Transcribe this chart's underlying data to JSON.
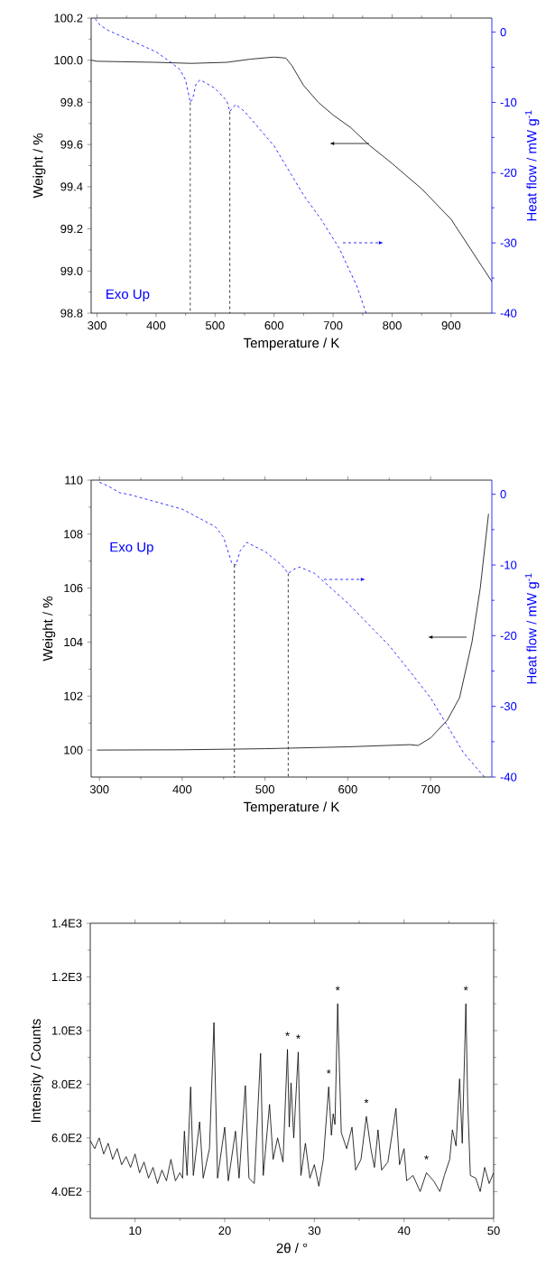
{
  "chart_data": [
    {
      "type": "line",
      "xlabel": "Temperature / K",
      "ylabel": "Weight / %",
      "y2label": "Heat flow / mW g$^{-1}$",
      "xlim": [
        290,
        969
      ],
      "xticks": [
        300,
        400,
        500,
        600,
        700,
        800,
        900
      ],
      "ylim": [
        98.8,
        100.2
      ],
      "yticks": [
        98.8,
        {
          "value": 99,
          "label": "99.0"
        },
        99.2,
        99.4,
        99.6,
        99.8,
        {
          "value": 100,
          "label": "100.0"
        },
        100.2
      ],
      "y2lim": [
        -40,
        2
      ],
      "y2ticks": [
        -40,
        -30,
        -20,
        -10,
        0
      ],
      "annotations": [
        "Exo Up"
      ],
      "series": [
        {
          "color": "#000000",
          "x": [
            290,
            300,
            400,
            460,
            520,
            560,
            600,
            620,
            630,
            650,
            675,
            700,
            730,
            760,
            800,
            850,
            900,
            969
          ],
          "values": [
            100.0,
            99.995,
            99.99,
            99.985,
            99.99,
            100.005,
            100.015,
            100.01,
            99.975,
            99.88,
            99.8,
            99.74,
            99.68,
            99.6,
            99.51,
            99.39,
            99.245,
            98.95
          ]
        },
        {
          "color": "#0000ff",
          "axis": "y2",
          "line_style": "dashed",
          "x": [
            297,
            305,
            320,
            400,
            425,
            440,
            450,
            458,
            462,
            468,
            475,
            500,
            520,
            525,
            535,
            550,
            600,
            650,
            680,
            710,
            740,
            756
          ],
          "values": [
            1.9,
            1.0,
            0.2,
            -2.8,
            -4.3,
            -5.3,
            -6.8,
            -10.0,
            -9.5,
            -7.3,
            -6.8,
            -8.0,
            -9.8,
            -11.3,
            -10.3,
            -11.3,
            -16.2,
            -23.2,
            -26.7,
            -30.7,
            -36.1,
            -40
          ]
        },
        {
          "color": "#000000",
          "axis": "y2",
          "line_style": "dashed",
          "x": [
            458,
            458
          ],
          "values": [
            -10.0,
            -40
          ]
        },
        {
          "color": "#000000",
          "axis": "y2",
          "line_style": "dashed",
          "x": [
            525,
            525
          ],
          "values": [
            -11.3,
            -40
          ]
        }
      ]
    },
    {
      "type": "line",
      "xlabel": "Temperature / K",
      "ylabel": "Weight / %",
      "y2label": "Heat flow / mW g$^{-1}$",
      "xlim": [
        290,
        774
      ],
      "xticks": [
        300,
        400,
        500,
        600,
        700
      ],
      "ylim": [
        99,
        110
      ],
      "yticks": [
        100,
        102,
        104,
        106,
        108,
        110
      ],
      "y2lim": [
        -40,
        2
      ],
      "y2ticks": [
        -40,
        -30,
        -20,
        -10,
        0
      ],
      "annotations": [
        "Exo Up"
      ],
      "series": [
        {
          "color": "#000000",
          "x": [
            297,
            400,
            500,
            600,
            675,
            685,
            700,
            720,
            735,
            750,
            760,
            770
          ],
          "values": [
            100.0,
            100.01,
            100.05,
            100.12,
            100.2,
            100.17,
            100.45,
            101.1,
            101.94,
            104.0,
            106.0,
            108.75
          ]
        },
        {
          "color": "#0000ff",
          "axis": "y2",
          "line_style": "dashed",
          "x": [
            300,
            310,
            325,
            335,
            400,
            440,
            450,
            460,
            465,
            470,
            478,
            500,
            520,
            528,
            535,
            542,
            560,
            600,
            650,
            680,
            700,
            720,
            740,
            765
          ],
          "values": [
            1.7,
            1.2,
            0.2,
            0.0,
            -2.1,
            -4.6,
            -6.1,
            -9.8,
            -10.0,
            -8.0,
            -6.8,
            -8.1,
            -10.0,
            -11.2,
            -10.6,
            -10.3,
            -11.2,
            -15.4,
            -21.4,
            -25.8,
            -28.8,
            -32.7,
            -36.6,
            -40
          ]
        },
        {
          "color": "#000000",
          "axis": "y2",
          "line_style": "dashed",
          "x": [
            463,
            463
          ],
          "values": [
            -10.0,
            -40
          ]
        },
        {
          "color": "#000000",
          "axis": "y2",
          "line_style": "dashed",
          "x": [
            528,
            528
          ],
          "values": [
            -11.2,
            -40
          ]
        }
      ]
    },
    {
      "type": "line",
      "xlabel": "2θ / °",
      "ylabel": "Intensity / Counts",
      "xlim": [
        5,
        50
      ],
      "xticks": [
        10,
        20,
        30,
        40,
        50
      ],
      "ylim": [
        300,
        1400
      ],
      "yticks": [
        {
          "value": 400,
          "label": "4.0E2"
        },
        {
          "value": 600,
          "label": "6.0E2"
        },
        {
          "value": 800,
          "label": "8.0E2"
        },
        {
          "value": 1000,
          "label": "1.0E3"
        },
        {
          "value": 1200,
          "label": "1.2E3"
        },
        {
          "value": 1400,
          "label": "1.4E3"
        }
      ],
      "annotations": [
        {
          "text": "*",
          "x": 27.0,
          "y": 930
        },
        {
          "text": "*",
          "x": 28.2,
          "y": 920
        },
        {
          "text": "*",
          "x": 31.6,
          "y": 790
        },
        {
          "text": "*",
          "x": 32.6,
          "y": 1100
        },
        {
          "text": "*",
          "x": 35.8,
          "y": 680
        },
        {
          "text": "*",
          "x": 42.5,
          "y": 470
        },
        {
          "text": "*",
          "x": 46.9,
          "y": 1100
        }
      ],
      "series": [
        {
          "color": "#000000",
          "x": [
            5,
            5.5,
            6,
            6.5,
            7,
            7.5,
            8,
            8.5,
            9,
            9.5,
            10,
            10.5,
            11,
            11.5,
            12,
            12.5,
            13,
            13.5,
            14,
            14.5,
            15,
            15.3,
            15.5,
            15.8,
            16.2,
            16.5,
            17.2,
            17.6,
            18.3,
            18.8,
            19.2,
            20.0,
            20.4,
            21.2,
            21.6,
            22.3,
            22.7,
            23.3,
            24.0,
            24.3,
            25.0,
            25.4,
            25.9,
            26.5,
            27.0,
            27.2,
            27.4,
            27.7,
            28.2,
            28.5,
            29.0,
            29.5,
            30.0,
            30.5,
            31.0,
            31.6,
            31.9,
            32.1,
            32.3,
            32.6,
            33.0,
            33.6,
            34.2,
            34.6,
            35.2,
            35.8,
            36.3,
            36.7,
            37.1,
            37.5,
            38.2,
            39.1,
            39.5,
            40.0,
            40.3,
            41,
            41.8,
            42.5,
            43.3,
            44,
            44.5,
            45.1,
            45.4,
            45.8,
            46.2,
            46.5,
            46.9,
            47.1,
            47.4,
            48,
            48.5,
            49,
            49.5,
            50
          ],
          "values": [
            590,
            560,
            600,
            540,
            580,
            520,
            560,
            500,
            530,
            490,
            540,
            470,
            510,
            450,
            490,
            430,
            480,
            440,
            520,
            440,
            470,
            450,
            625,
            460,
            790,
            460,
            660,
            450,
            560,
            1030,
            450,
            640,
            440,
            625,
            450,
            795,
            450,
            430,
            915,
            460,
            725,
            520,
            600,
            510,
            930,
            640,
            805,
            600,
            920,
            460,
            580,
            450,
            500,
            420,
            520,
            790,
            610,
            690,
            650,
            1100,
            620,
            560,
            640,
            480,
            520,
            680,
            560,
            490,
            630,
            480,
            510,
            710,
            500,
            560,
            440,
            460,
            400,
            470,
            440,
            400,
            460,
            520,
            630,
            570,
            820,
            580,
            1100,
            740,
            460,
            450,
            400,
            490,
            430,
            470
          ]
        }
      ]
    }
  ]
}
